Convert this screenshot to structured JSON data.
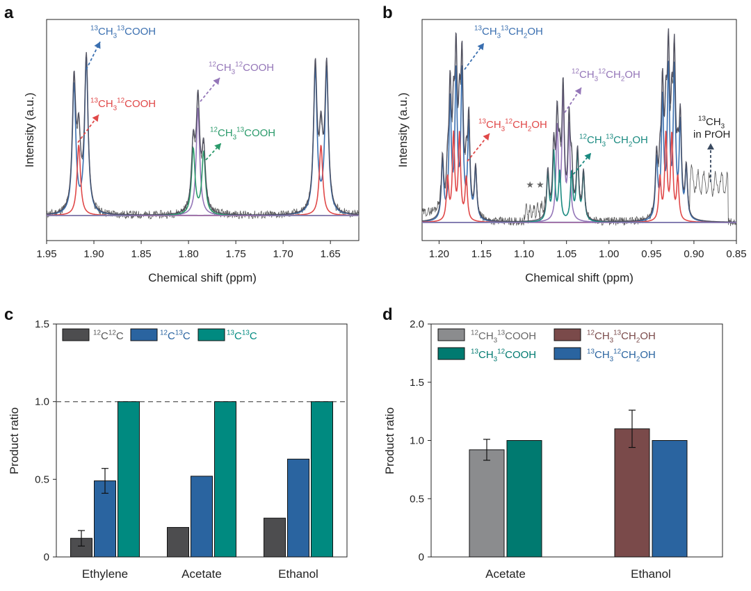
{
  "colors": {
    "gray": "#4d4d4f",
    "blue": "#2a64a0",
    "teal": "#008a80",
    "lightgray": "#8b8c8e",
    "darkteal": "#007a70",
    "brown": "#7a4a4a",
    "nmr_blue": "#3a6fb0",
    "nmr_red": "#e04848",
    "nmr_purple": "#9476b8",
    "nmr_green": "#2a9a6a",
    "nmr_teal": "#1a8a80",
    "nmr_total": "#4a4a5a",
    "nmr_raw": "#555555"
  },
  "chart_data": [
    {
      "panel": "a",
      "type": "line",
      "xlabel": "Chemical shift (ppm)",
      "ylabel": "Intensity (a.u.)",
      "xlim": [
        1.95,
        1.62
      ],
      "xticks": [
        "1.95",
        "1.90",
        "1.85",
        "1.80",
        "1.75",
        "1.70",
        "1.65"
      ],
      "xtick_values": [
        1.95,
        1.9,
        1.85,
        1.8,
        1.75,
        1.7,
        1.65
      ],
      "peaks": [
        {
          "name": "13CH3 13COOH",
          "color": "nmr_blue",
          "positions": [
            1.921,
            1.908,
            1.666,
            1.654
          ],
          "heights": [
            0.77,
            0.92,
            0.86,
            0.86
          ]
        },
        {
          "name": "13CH3 12COOH",
          "color": "nmr_red",
          "positions": [
            1.916,
            1.66
          ],
          "heights": [
            0.42,
            0.42
          ]
        },
        {
          "name": "12CH3 12COOH",
          "color": "nmr_purple",
          "positions": [
            1.79
          ],
          "heights": [
            0.64
          ]
        },
        {
          "name": "12CH3 13COOH",
          "color": "nmr_green",
          "positions": [
            1.795,
            1.784
          ],
          "heights": [
            0.39,
            0.37
          ]
        }
      ],
      "labels": {
        "l1": {
          "pre1": "13",
          "a": "CH",
          "sub": "3",
          "pre2": "13",
          "b": "COOH"
        },
        "l2": {
          "pre1": "13",
          "a": "CH",
          "sub": "3",
          "pre2": "12",
          "b": "COOH"
        },
        "l3": {
          "pre1": "12",
          "a": "CH",
          "sub": "3",
          "pre2": "12",
          "b": "COOH"
        },
        "l4": {
          "pre1": "12",
          "a": "CH",
          "sub": "3",
          "pre2": "13",
          "b": "COOH"
        }
      }
    },
    {
      "panel": "b",
      "type": "line",
      "xlabel": "Chemical shift (ppm)",
      "ylabel": "Intensity (a.u.)",
      "xlim": [
        1.22,
        0.85
      ],
      "xticks": [
        "1.20",
        "1.15",
        "1.10",
        "1.05",
        "1.00",
        "0.95",
        "0.90",
        "0.85"
      ],
      "xtick_values": [
        1.2,
        1.15,
        1.1,
        1.05,
        1.0,
        0.95,
        0.9,
        0.85
      ],
      "peaks": [
        {
          "name": "13CH3 13CH2OH",
          "color": "nmr_blue",
          "positions": [
            1.196,
            1.187,
            1.18,
            1.173,
            1.165,
            1.157,
            0.944,
            0.937,
            0.93,
            0.923,
            0.916,
            0.909
          ],
          "heights": [
            0.35,
            0.7,
            0.85,
            0.85,
            0.55,
            0.3,
            0.35,
            0.7,
            0.86,
            0.86,
            0.55,
            0.3
          ]
        },
        {
          "name": "13CH3 12CH2OH",
          "color": "nmr_red",
          "positions": [
            1.19,
            1.183,
            1.176,
            1.168,
            0.94,
            0.933,
            0.926,
            0.919
          ],
          "heights": [
            0.25,
            0.5,
            0.5,
            0.25,
            0.25,
            0.5,
            0.5,
            0.25
          ]
        },
        {
          "name": "12CH3 12CH2OH",
          "color": "nmr_purple",
          "positions": [
            1.061,
            1.054,
            1.047
          ],
          "heights": [
            0.55,
            0.75,
            0.55
          ]
        },
        {
          "name": "12CH3 13CH2OH",
          "color": "nmr_teal",
          "positions": [
            1.072,
            1.065,
            1.058,
            1.044,
            1.037,
            1.03
          ],
          "heights": [
            0.28,
            0.4,
            0.28,
            0.28,
            0.4,
            0.28
          ]
        }
      ],
      "stars": [
        1.093,
        1.081
      ],
      "labels": {
        "l1": {
          "pre1": "13",
          "a": "CH",
          "sub": "3",
          "pre2": "13",
          "b": "CH",
          "sub2": "2",
          "c": "OH"
        },
        "l2": {
          "pre1": "13",
          "a": "CH",
          "sub": "3",
          "pre2": "12",
          "b": "CH",
          "sub2": "2",
          "c": "OH"
        },
        "l3": {
          "pre1": "12",
          "a": "CH",
          "sub": "3",
          "pre2": "12",
          "b": "CH",
          "sub2": "2",
          "c": "OH"
        },
        "l4": {
          "pre1": "12",
          "a": "CH",
          "sub": "3",
          "pre2": "13",
          "b": "CH",
          "sub2": "2",
          "c": "OH"
        },
        "l5": {
          "pre1": "13",
          "a": "CH",
          "sub": "3",
          "line2": "in PrOH"
        }
      }
    },
    {
      "panel": "c",
      "type": "bar",
      "ylabel": "Product ratio",
      "ylim": [
        0,
        1.5
      ],
      "yticks": [
        "0",
        "0.5",
        "1.0",
        "1.5"
      ],
      "ytick_values": [
        0,
        0.5,
        1.0,
        1.5
      ],
      "reference_line": 1.0,
      "categories": [
        "Ethylene",
        "Acetate",
        "Ethanol"
      ],
      "series": [
        {
          "name": "12C12C",
          "pre1": "12",
          "a": "C",
          "pre2": "12",
          "b": "C",
          "color": "gray",
          "values": [
            0.12,
            0.19,
            0.25
          ],
          "errors": [
            0.05,
            null,
            null
          ]
        },
        {
          "name": "12C13C",
          "pre1": "12",
          "a": "C",
          "pre2": "13",
          "b": "C",
          "color": "blue",
          "values": [
            0.49,
            0.52,
            0.63
          ],
          "errors": [
            0.08,
            null,
            null
          ]
        },
        {
          "name": "13C13C",
          "pre1": "13",
          "a": "C",
          "pre2": "13",
          "b": "C",
          "color": "teal",
          "values": [
            1.0,
            1.0,
            1.0
          ],
          "errors": [
            null,
            null,
            null
          ]
        }
      ],
      "legend": "top-left"
    },
    {
      "panel": "d",
      "type": "bar",
      "ylabel": "Product ratio",
      "ylim": [
        0,
        2.0
      ],
      "yticks": [
        "0",
        "0.5",
        "1.0",
        "1.5",
        "2.0"
      ],
      "ytick_values": [
        0,
        0.5,
        1.0,
        1.5,
        2.0
      ],
      "categories": [
        "Acetate",
        "Ethanol"
      ],
      "bars": [
        {
          "category": "Acetate",
          "series": "12CH3 13COOH",
          "color": "lightgray",
          "value": 0.92,
          "error": 0.09
        },
        {
          "category": "Acetate",
          "series": "13CH3 12COOH",
          "color": "darkteal",
          "value": 1.0,
          "error": null
        },
        {
          "category": "Ethanol",
          "series": "12CH3 13CH2OH",
          "color": "brown",
          "value": 1.1,
          "error": 0.16
        },
        {
          "category": "Ethanol",
          "series": "13CH3 12CH2OH",
          "color": "blue",
          "value": 1.0,
          "error": null
        }
      ],
      "legend_entries": [
        {
          "pre1": "12",
          "a": "CH",
          "sub": "3",
          "pre2": "13",
          "b": "COOH",
          "color": "lightgray",
          "text_color": "#666666"
        },
        {
          "pre1": "12",
          "a": "CH",
          "sub": "3",
          "pre2": "13",
          "b": "CH",
          "sub2": "2",
          "c": "OH",
          "color": "brown",
          "text_color": "#7a4a4a"
        },
        {
          "pre1": "13",
          "a": "CH",
          "sub": "3",
          "pre2": "12",
          "b": "COOH",
          "color": "darkteal",
          "text_color": "#007a70"
        },
        {
          "pre1": "13",
          "a": "CH",
          "sub": "3",
          "pre2": "12",
          "b": "CH",
          "sub2": "2",
          "c": "OH",
          "color": "blue",
          "text_color": "#2a64a0"
        }
      ],
      "legend": "top-left"
    }
  ],
  "panel_letters": {
    "a": "a",
    "b": "b",
    "c": "c",
    "d": "d"
  }
}
